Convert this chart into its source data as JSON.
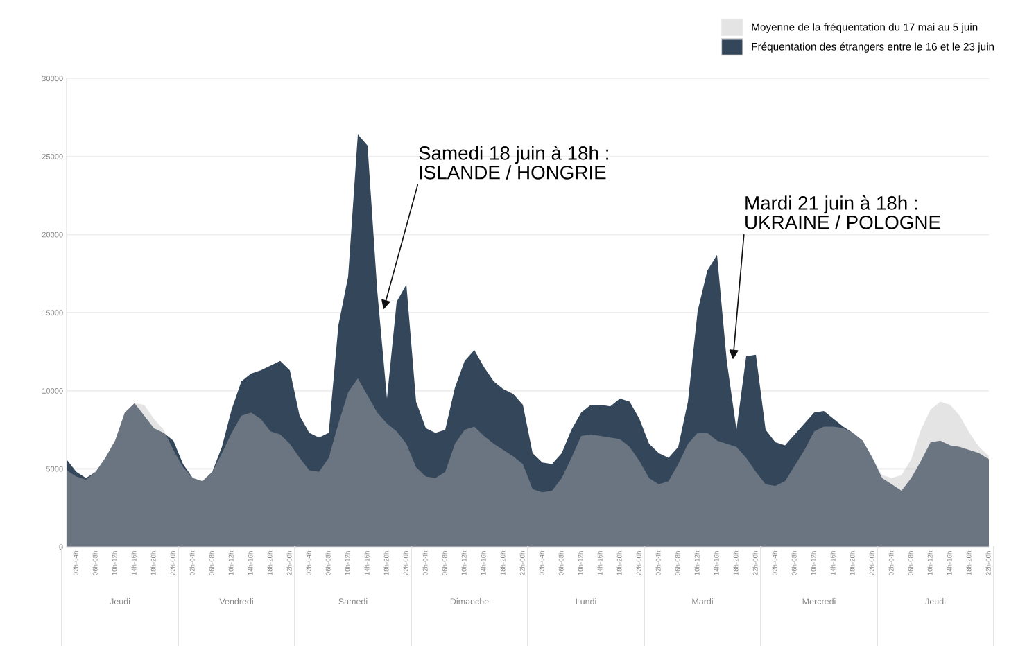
{
  "chart_data": {
    "type": "area",
    "categories": [
      null,
      "02h-04h",
      null,
      "06h-08h",
      null,
      "10h-12h",
      null,
      "14h-16h",
      null,
      "18h-20h",
      null,
      "22h-00h",
      null,
      "02h-04h",
      null,
      "06h-08h",
      null,
      "10h-12h",
      null,
      "14h-16h",
      null,
      "18h-20h",
      null,
      "22h-00h",
      null,
      "02h-04h",
      null,
      "06h-08h",
      null,
      "10h-12h",
      null,
      "14h-16h",
      null,
      "18h-20h",
      null,
      "22h-00h",
      null,
      "02h-04h",
      null,
      "06h-08h",
      null,
      "10h-12h",
      null,
      "14h-16h",
      null,
      "18h-20h",
      null,
      "22h-00h",
      null,
      "02h-04h",
      null,
      "06h-08h",
      null,
      "10h-12h",
      null,
      "14h-16h",
      null,
      "18h-20h",
      null,
      "22h-00h",
      null,
      "02h-04h",
      null,
      "06h-08h",
      null,
      "10h-12h",
      null,
      "14h-16h",
      null,
      "18h-20h",
      null,
      "22h-00h",
      null,
      "02h-04h",
      null,
      "06h-08h",
      null,
      "10h-12h",
      null,
      "14h-16h",
      null,
      "18h-20h",
      null,
      "22h-00h",
      null,
      "02h-04h",
      null,
      "06h-08h",
      null,
      "10h-12h",
      null,
      "14h-16h",
      null,
      "18h-20h",
      null,
      "22h-00h"
    ],
    "series": [
      {
        "name": "Fréquentation des étrangers entre le 16 et le 23 juin",
        "color": "#34465a",
        "values": [
          5600,
          4800,
          4400,
          4800,
          5700,
          6800,
          8600,
          9200,
          8400,
          7600,
          7300,
          6800,
          5300,
          4400,
          4200,
          4800,
          6400,
          8800,
          10600,
          11100,
          11300,
          11600,
          11900,
          11300,
          8400,
          7300,
          7000,
          7300,
          14200,
          17300,
          26400,
          25700,
          16400,
          9500,
          15700,
          16800,
          9300,
          7600,
          7300,
          7500,
          10200,
          11900,
          12600,
          11500,
          10600,
          10100,
          9800,
          9100,
          6000,
          5400,
          5300,
          6000,
          7500,
          8600,
          9100,
          9100,
          9000,
          9500,
          9300,
          8200,
          6600,
          6000,
          5700,
          6400,
          9300,
          15100,
          17700,
          18700,
          11900,
          7500,
          12200,
          12300,
          7500,
          6700,
          6500,
          7200,
          7900,
          8600,
          8700,
          8200,
          7700,
          7300,
          6800,
          5700,
          4400,
          4000,
          3600,
          4400,
          5500,
          6700,
          6800,
          6500,
          6400,
          6200,
          6000,
          5600
        ]
      },
      {
        "name": "Moyenne de la fréquentation du 17 mai au 5 juin",
        "color": "#bcbcbc",
        "values": [
          4900,
          4500,
          4300,
          4800,
          5700,
          6800,
          8600,
          9200,
          9100,
          8200,
          7500,
          6200,
          5100,
          4400,
          4200,
          4800,
          6000,
          7300,
          8400,
          8600,
          8200,
          7400,
          7200,
          6600,
          5700,
          4900,
          4800,
          5700,
          7900,
          9900,
          10800,
          9700,
          8600,
          7900,
          7400,
          6600,
          5100,
          4500,
          4400,
          4800,
          6600,
          7500,
          7700,
          7100,
          6600,
          6200,
          5800,
          5300,
          3700,
          3500,
          3600,
          4400,
          5700,
          7100,
          7200,
          7100,
          7000,
          6900,
          6400,
          5500,
          4400,
          4000,
          4200,
          5300,
          6600,
          7300,
          7300,
          6800,
          6600,
          6400,
          5700,
          4800,
          4000,
          3900,
          4200,
          5200,
          6200,
          7400,
          7700,
          7700,
          7600,
          7300,
          6800,
          5700,
          4600,
          4400,
          4600,
          5600,
          7500,
          8800,
          9300,
          9100,
          8400,
          7300,
          6400,
          5800
        ]
      }
    ],
    "ylim": [
      0,
      30000
    ],
    "yticks": [
      0,
      5000,
      10000,
      15000,
      20000,
      25000,
      30000
    ],
    "grid": "y",
    "legend": "top right",
    "annotations": [
      "Jeudi",
      "Vendredi",
      "Samedi",
      "Dimanche",
      "Lundi",
      "Mardi",
      "Mercredi",
      "Jeudi",
      "Samedi 18 juin à 18h :\nISLANDE / HONGRIE",
      "Mardi 21 juin à 18h :\nUKRAINE / POLOGNE"
    ]
  }
}
